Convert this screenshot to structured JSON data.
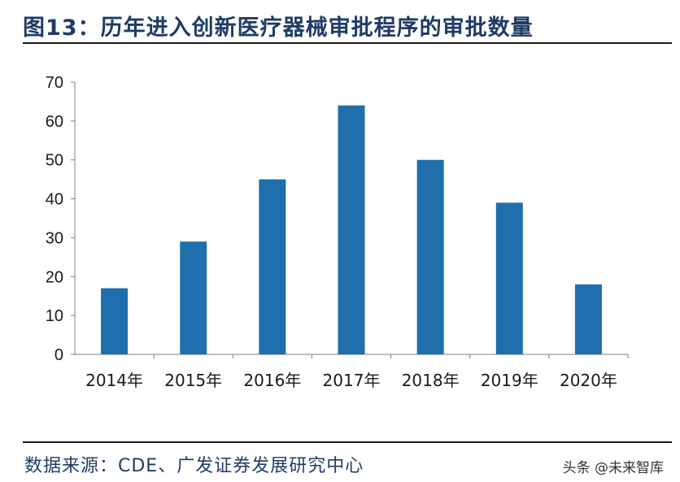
{
  "header": {
    "title": "图13：历年进入创新医疗器械审批程序的审批数量"
  },
  "chart_data": {
    "type": "bar",
    "categories": [
      "2014年",
      "2015年",
      "2016年",
      "2017年",
      "2018年",
      "2019年",
      "2020年"
    ],
    "values": [
      17,
      29,
      45,
      64,
      50,
      39,
      18
    ],
    "title": "",
    "xlabel": "",
    "ylabel": "",
    "ylim": [
      0,
      70
    ],
    "yticks": [
      0,
      10,
      20,
      30,
      40,
      50,
      60,
      70
    ],
    "grid": false,
    "legend": "none",
    "bar_color": "#1f6fac"
  },
  "footer": {
    "source": "数据来源：CDE、广发证券发展研究中心",
    "watermark": "头条 @未来智库"
  }
}
